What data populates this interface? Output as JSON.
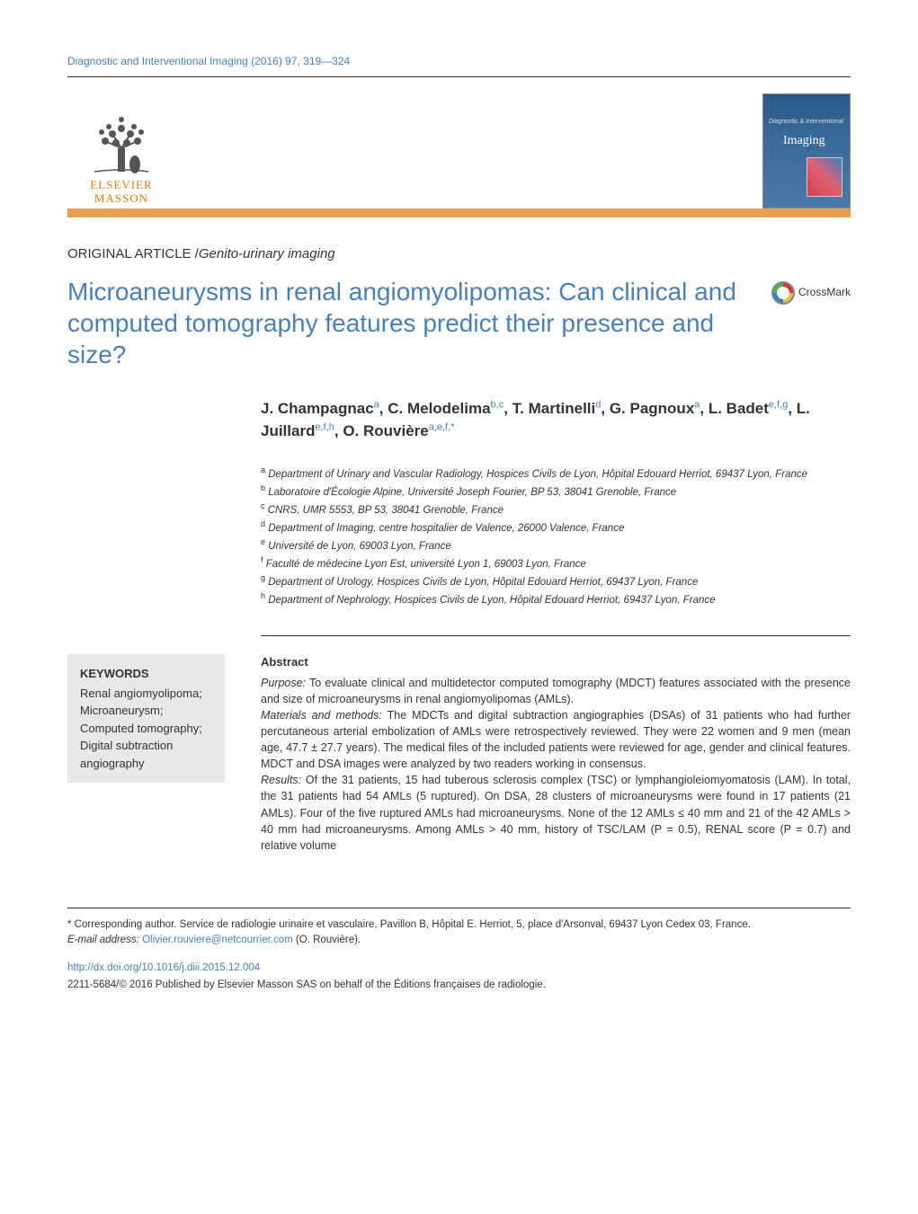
{
  "journal_ref": "Diagnostic and Interventional Imaging (2016) 97, 319—324",
  "logo": {
    "line1": "ELSEVIER",
    "line2": "MASSON"
  },
  "cover": {
    "small": "Diagnostic & Interventional",
    "big": "Imaging"
  },
  "article_type_label": "ORIGINAL ARTICLE /",
  "article_section": "Genito-urinary imaging",
  "title": "Microaneurysms in renal angiomyolipomas: Can clinical and computed tomography features predict their presence and size?",
  "crossmark": "CrossMark",
  "authors_html": "J. Champagnac<sup>a</sup>, C. Melodelima<sup>b,c</sup>, T. Martinelli<sup>d</sup>, G. Pagnoux<sup>a</sup>, L. Badet<sup>e,f,g</sup>, L. Juillard<sup>e,f,h</sup>, O. Rouvière<sup>a,e,f,*</sup>",
  "affiliations": [
    {
      "sup": "a",
      "text": "Department of Urinary and Vascular Radiology, Hospices Civils de Lyon, Hôpital Edouard Herriot, 69437 Lyon, France"
    },
    {
      "sup": "b",
      "text": "Laboratoire d'Écologie Alpine, Université Joseph Fourier, BP 53, 38041 Grenoble, France"
    },
    {
      "sup": "c",
      "text": "CNRS, UMR 5553, BP 53, 38041 Grenoble, France"
    },
    {
      "sup": "d",
      "text": "Department of Imaging, centre hospitalier de Valence, 26000 Valence, France"
    },
    {
      "sup": "e",
      "text": "Université de Lyon, 69003 Lyon, France"
    },
    {
      "sup": "f",
      "text": "Faculté de médecine Lyon Est, université Lyon 1, 69003 Lyon, France"
    },
    {
      "sup": "g",
      "text": "Department of Urology, Hospices Civils de Lyon, Hôpital Edouard Herriot, 69437 Lyon, France"
    },
    {
      "sup": "h",
      "text": "Department of Nephrology, Hospices Civils de Lyon, Hôpital Edouard Herriot, 69437 Lyon, France"
    }
  ],
  "keywords_title": "KEYWORDS",
  "keywords": "Renal angiomyolipoma; Microaneurysm; Computed tomography; Digital subtraction angiography",
  "abstract_title": "Abstract",
  "abstract": {
    "purpose_label": "Purpose:",
    "purpose": " To evaluate clinical and multidetector computed tomography (MDCT) features associated with the presence and size of microaneurysms in renal angiomyolipomas (AMLs).",
    "methods_label": "Materials and methods:",
    "methods": " The MDCTs and digital subtraction angiographies (DSAs) of 31 patients who had further percutaneous arterial embolization of AMLs were retrospectively reviewed. They were 22 women and 9 men (mean age, 47.7 ± 27.7 years). The medical files of the included patients were reviewed for age, gender and clinical features. MDCT and DSA images were analyzed by two readers working in consensus.",
    "results_label": "Results:",
    "results": " Of the 31 patients, 15 had tuberous sclerosis complex (TSC) or lymphangioleiomyomatosis (LAM). In total, the 31 patients had 54 AMLs (5 ruptured). On DSA, 28 clusters of microaneurysms were found in 17 patients (21 AMLs). Four of the five ruptured AMLs had microaneurysms. None of the 12 AMLs ≤ 40 mm and 21 of the 42 AMLs > 40 mm had microaneurysms. Among AMLs > 40 mm, history of TSC/LAM (P = 0.5), RENAL score (P = 0.7) and relative volume"
  },
  "footnote_corresponding": "* Corresponding author. Service de radiologie urinaire et vasculaire, Pavillon B, Hôpital E. Herriot, 5, place d'Arsonval, 69437 Lyon Cedex 03, France.",
  "footnote_email_label": "E-mail address:",
  "footnote_email": "Olivier.rouviere@netcourrier.com",
  "footnote_email_suffix": " (O. Rouvière).",
  "doi": "http://dx.doi.org/10.1016/j.diii.2015.12.004",
  "copyright": "2211-5684/© 2016 Published by Elsevier Masson SAS on behalf of the Éditions françaises de radiologie.",
  "colors": {
    "link": "#4a7fb8",
    "orange_bar": "#e6a050",
    "elsevier": "#e67817",
    "keywords_bg": "#e8e8e8"
  }
}
